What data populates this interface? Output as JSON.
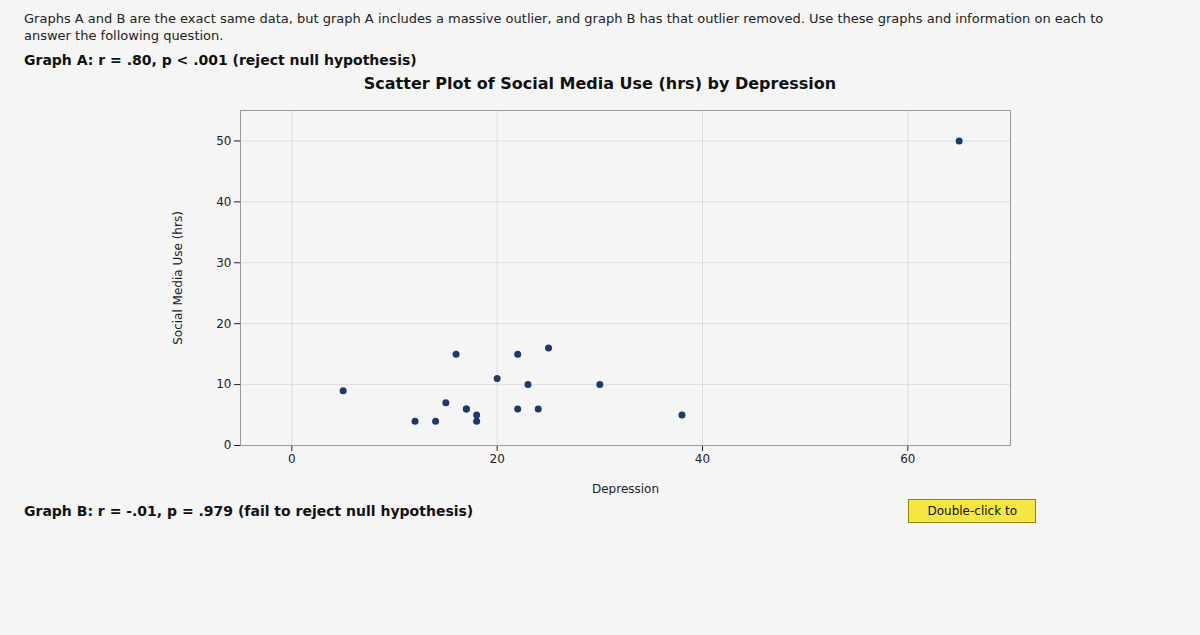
{
  "chart_data": {
    "type": "scatter",
    "title": "Scatter Plot of Social Media Use (hrs) by Depression",
    "subtitle": "Graphs A and B are the exact same data, but graph A includes a massive outlier, and graph B has that outlier removed. Use these graphs and information on each to\nanswer the following question.",
    "annotations": [
      "Graph A: r = .80, p < .001 (reject null hypothesis)",
      "Graph B: r = -.01, p = .979 (fail to reject null hypothesis)",
      "Double-click to"
    ],
    "x_label": "Depression",
    "y_label": "Social Media Use (hrs)",
    "x": [
      5,
      12,
      14,
      15,
      16,
      17,
      17,
      18,
      18,
      20,
      22,
      22,
      23,
      24,
      25,
      30,
      38,
      65
    ],
    "values": [
      9,
      4,
      4,
      7,
      15,
      6,
      6,
      5,
      4,
      11,
      15,
      6,
      10,
      6,
      16,
      10,
      5,
      50
    ],
    "color": "#1a3a6b",
    "xlim": [
      -5,
      70
    ],
    "ylim": [
      0,
      55
    ],
    "xticks": [
      0,
      20,
      40,
      60
    ],
    "yticks": [
      0,
      10,
      20,
      30,
      40,
      50
    ],
    "grid": true
  }
}
